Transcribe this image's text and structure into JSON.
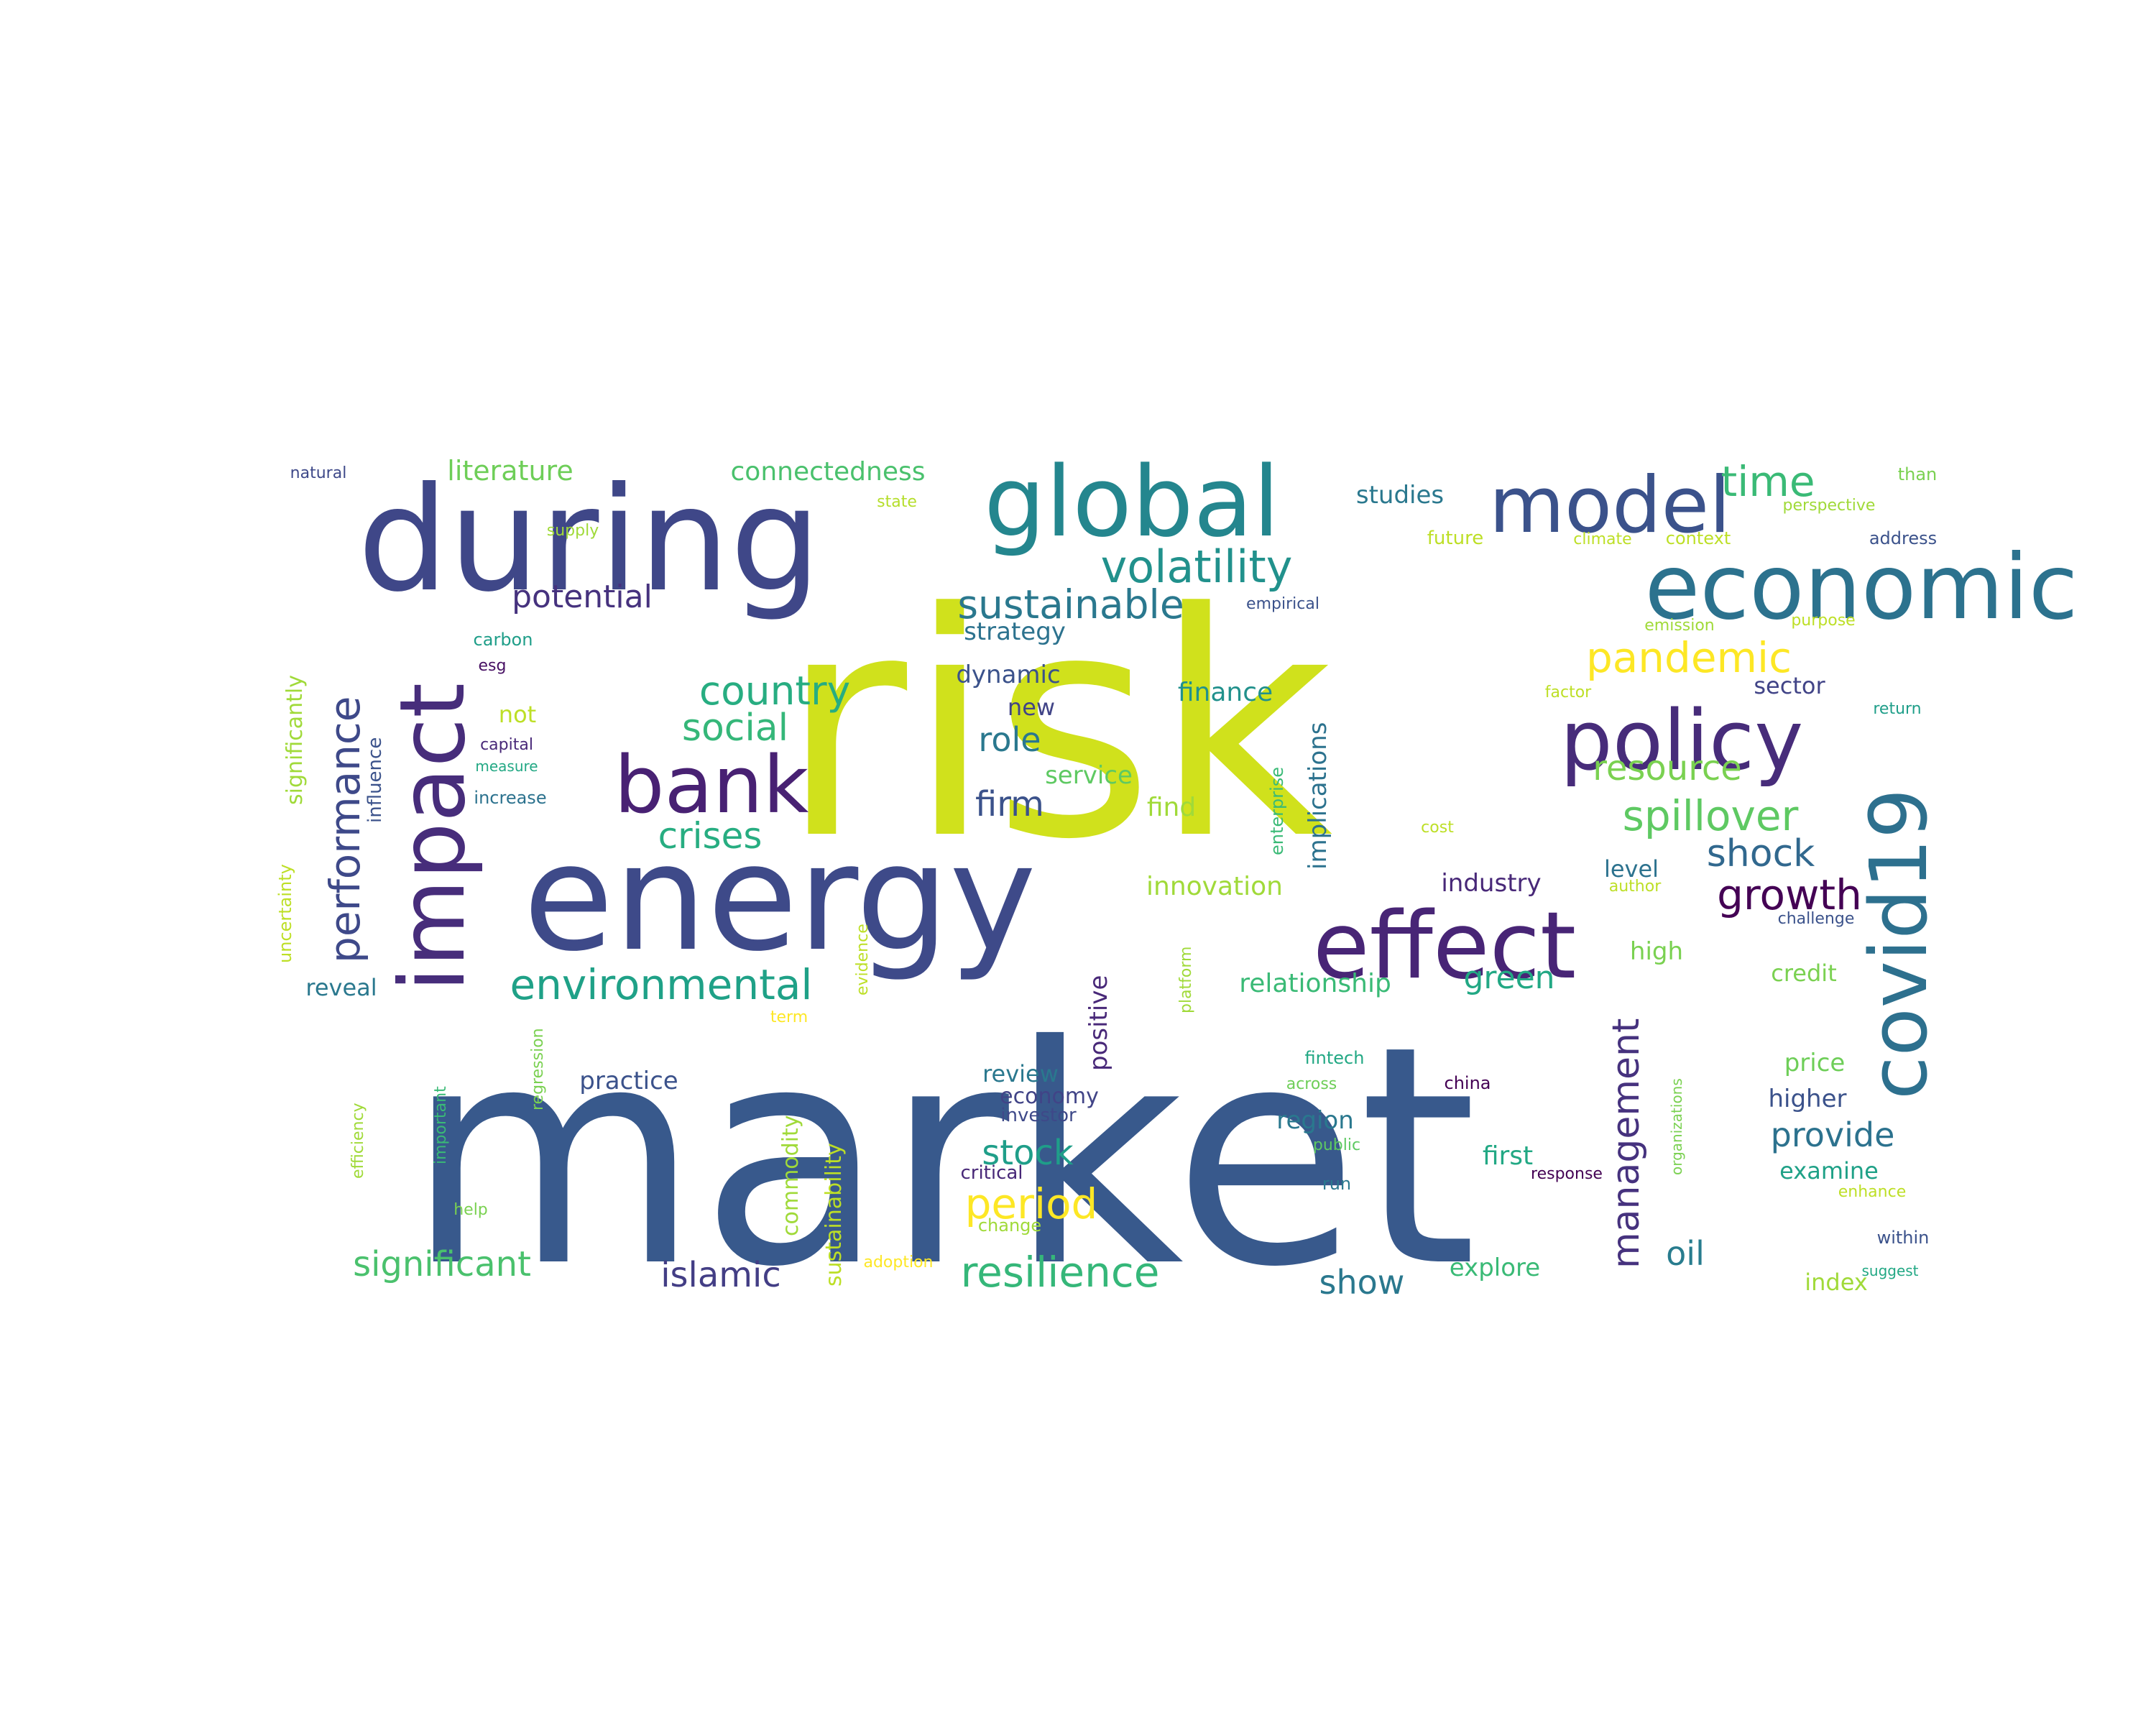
{
  "word_cloud": {
    "words": [
      {
        "text": "risk",
        "color": "#d0e11c"
      },
      {
        "text": "market",
        "color": "#38598c"
      },
      {
        "text": "during",
        "color": "#3f4788"
      },
      {
        "text": "energy",
        "color": "#3e4a89"
      },
      {
        "text": "global",
        "color": "#24868e"
      },
      {
        "text": "model",
        "color": "#3b528b"
      },
      {
        "text": "economic",
        "color": "#2c728e"
      },
      {
        "text": "impact",
        "color": "#472d7b"
      },
      {
        "text": "effect",
        "color": "#482576"
      },
      {
        "text": "policy",
        "color": "#472c7a"
      },
      {
        "text": "covid19",
        "color": "#2d708e"
      },
      {
        "text": "bank",
        "color": "#482173"
      },
      {
        "text": "performance",
        "color": "#3e4989"
      },
      {
        "text": "volatility",
        "color": "#21918c"
      },
      {
        "text": "sustainable",
        "color": "#2a788e"
      },
      {
        "text": "time",
        "color": "#3aba76"
      },
      {
        "text": "country",
        "color": "#27ad81"
      },
      {
        "text": "social",
        "color": "#35b779"
      },
      {
        "text": "crises",
        "color": "#27ad81"
      },
      {
        "text": "environmental",
        "color": "#1fa187"
      },
      {
        "text": "pandemic",
        "color": "#fde725"
      },
      {
        "text": "spillover",
        "color": "#5ec962"
      },
      {
        "text": "resource",
        "color": "#7ad151"
      },
      {
        "text": "shock",
        "color": "#31688e"
      },
      {
        "text": "growth",
        "color": "#440154"
      },
      {
        "text": "management",
        "color": "#46327e"
      },
      {
        "text": "period",
        "color": "#fde725"
      },
      {
        "text": "resilience",
        "color": "#35b779"
      },
      {
        "text": "significant",
        "color": "#4ac16d"
      },
      {
        "text": "islamic",
        "color": "#433e85"
      },
      {
        "text": "stock",
        "color": "#1f9e89"
      },
      {
        "text": "firm",
        "color": "#3b528b"
      },
      {
        "text": "role",
        "color": "#2a788e"
      },
      {
        "text": "potential",
        "color": "#46327e"
      },
      {
        "text": "literature",
        "color": "#6ece58"
      },
      {
        "text": "connectedness",
        "color": "#4ac16d"
      },
      {
        "text": "provide",
        "color": "#2c728e"
      },
      {
        "text": "oil",
        "color": "#287c8e"
      },
      {
        "text": "show",
        "color": "#2a788e"
      },
      {
        "text": "green",
        "color": "#22a884"
      },
      {
        "text": "innovation",
        "color": "#a0da39"
      },
      {
        "text": "relationship",
        "color": "#3aba76"
      },
      {
        "text": "finance",
        "color": "#21918c"
      },
      {
        "text": "dynamic",
        "color": "#3b528b"
      },
      {
        "text": "strategy",
        "color": "#2c728e"
      },
      {
        "text": "new",
        "color": "#414487"
      },
      {
        "text": "service",
        "color": "#5ec962"
      },
      {
        "text": "find",
        "color": "#a0da39"
      },
      {
        "text": "implications",
        "color": "#2c728e"
      },
      {
        "text": "positive",
        "color": "#482878"
      },
      {
        "text": "practice",
        "color": "#3b528b"
      },
      {
        "text": "review",
        "color": "#2a788e"
      },
      {
        "text": "economy",
        "color": "#414487"
      },
      {
        "text": "investor",
        "color": "#3e4989"
      },
      {
        "text": "sustainability",
        "color": "#bddf26"
      },
      {
        "text": "commodity",
        "color": "#a0da39"
      },
      {
        "text": "region",
        "color": "#2a788e"
      },
      {
        "text": "first",
        "color": "#22a884"
      },
      {
        "text": "industry",
        "color": "#482878"
      },
      {
        "text": "level",
        "color": "#2c728e"
      },
      {
        "text": "high",
        "color": "#7ad151"
      },
      {
        "text": "credit",
        "color": "#7ad151"
      },
      {
        "text": "price",
        "color": "#6ece58"
      },
      {
        "text": "higher",
        "color": "#3b528b"
      },
      {
        "text": "examine",
        "color": "#1fa187"
      },
      {
        "text": "index",
        "color": "#a0da39"
      },
      {
        "text": "sector",
        "color": "#414487"
      },
      {
        "text": "explore",
        "color": "#3aba76"
      },
      {
        "text": "studies",
        "color": "#2a788e"
      },
      {
        "text": "reveal",
        "color": "#2a788e"
      },
      {
        "text": "significantly",
        "color": "#a0da39"
      },
      {
        "text": "influence",
        "color": "#3b528b"
      },
      {
        "text": "uncertainty",
        "color": "#bddf26"
      },
      {
        "text": "not",
        "color": "#bddf26"
      },
      {
        "text": "carbon",
        "color": "#1f9e89"
      },
      {
        "text": "esg",
        "color": "#471063"
      },
      {
        "text": "capital",
        "color": "#482878"
      },
      {
        "text": "measure",
        "color": "#22a884"
      },
      {
        "text": "increase",
        "color": "#2c728e"
      },
      {
        "text": "natural",
        "color": "#3e4989"
      },
      {
        "text": "supply",
        "color": "#a0da39"
      },
      {
        "text": "state",
        "color": "#b5de2b"
      },
      {
        "text": "future",
        "color": "#bddf26"
      },
      {
        "text": "climate",
        "color": "#bddf26"
      },
      {
        "text": "context",
        "color": "#bddf26"
      },
      {
        "text": "address",
        "color": "#3b528b"
      },
      {
        "text": "than",
        "color": "#7ad151"
      },
      {
        "text": "perspective",
        "color": "#a0da39"
      },
      {
        "text": "empirical",
        "color": "#3b528b"
      },
      {
        "text": "emission",
        "color": "#a0da39"
      },
      {
        "text": "purpose",
        "color": "#bddf26"
      },
      {
        "text": "factor",
        "color": "#bddf26"
      },
      {
        "text": "return",
        "color": "#1f9e89"
      },
      {
        "text": "enterprise",
        "color": "#3aba76"
      },
      {
        "text": "cost",
        "color": "#bddf26"
      },
      {
        "text": "author",
        "color": "#bddf26"
      },
      {
        "text": "challenge",
        "color": "#3b528b"
      },
      {
        "text": "platform",
        "color": "#a0da39"
      },
      {
        "text": "evidence",
        "color": "#bddf26"
      },
      {
        "text": "term",
        "color": "#fde725"
      },
      {
        "text": "regression",
        "color": "#7ad151"
      },
      {
        "text": "efficiency",
        "color": "#a0da39"
      },
      {
        "text": "important",
        "color": "#3aba76"
      },
      {
        "text": "help",
        "color": "#7ad151"
      },
      {
        "text": "fintech",
        "color": "#22a884"
      },
      {
        "text": "across",
        "color": "#6ece58"
      },
      {
        "text": "public",
        "color": "#5ec962"
      },
      {
        "text": "run",
        "color": "#2a788e"
      },
      {
        "text": "china",
        "color": "#440154"
      },
      {
        "text": "response",
        "color": "#440154"
      },
      {
        "text": "organizations",
        "color": "#7ad151"
      },
      {
        "text": "enhance",
        "color": "#bddf26"
      },
      {
        "text": "within",
        "color": "#3b528b"
      },
      {
        "text": "suggest",
        "color": "#22a884"
      },
      {
        "text": "critical",
        "color": "#482878"
      },
      {
        "text": "change",
        "color": "#a0da39"
      },
      {
        "text": "adoption",
        "color": "#fde725"
      }
    ]
  }
}
